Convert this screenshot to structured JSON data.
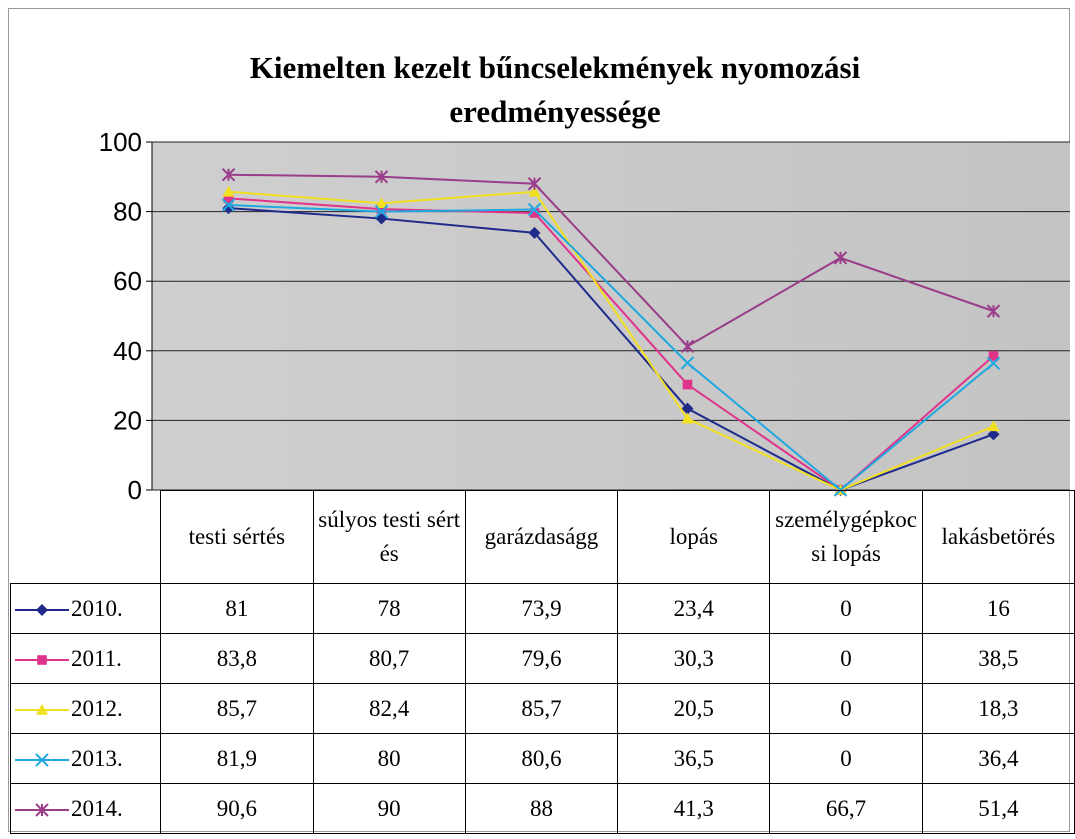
{
  "chart_data": {
    "type": "line",
    "title": "Kiemelten kezelt bűncselekmények nyomozási eredményessége",
    "categories": [
      "testi sértés",
      "súlyos testi sértés",
      "garázdaságg",
      "lopás",
      "személygépkocsi lopás",
      "lakásbetörés"
    ],
    "ylim": [
      0,
      100
    ],
    "yticks": [
      0,
      20,
      40,
      60,
      80,
      100
    ],
    "grid": true,
    "series": [
      {
        "name": "2010.",
        "color": "#1f2a8a",
        "marker": "diamond",
        "values": [
          81,
          78,
          73.9,
          23.4,
          0,
          16
        ],
        "value_labels": [
          "81",
          "78",
          "73,9",
          "23,4",
          "0",
          "16"
        ]
      },
      {
        "name": "2011.",
        "color": "#e0338a",
        "marker": "square",
        "values": [
          83.8,
          80.7,
          79.6,
          30.3,
          0,
          38.5
        ],
        "value_labels": [
          "83,8",
          "80,7",
          "79,6",
          "30,3",
          "0",
          "38,5"
        ]
      },
      {
        "name": "2012.",
        "color": "#f0e020",
        "marker": "triangle",
        "values": [
          85.7,
          82.4,
          85.7,
          20.5,
          0,
          18.3
        ],
        "value_labels": [
          "85,7",
          "82,4",
          "85,7",
          "20,5",
          "0",
          "18,3"
        ]
      },
      {
        "name": "2013.",
        "color": "#20a8e0",
        "marker": "x",
        "values": [
          81.9,
          80,
          80.6,
          36.5,
          0,
          36.4
        ],
        "value_labels": [
          "81,9",
          "80",
          "80,6",
          "36,5",
          "0",
          "36,4"
        ]
      },
      {
        "name": "2014.",
        "color": "#9a3d8a",
        "marker": "star",
        "values": [
          90.6,
          90,
          88,
          41.3,
          66.7,
          51.4
        ],
        "value_labels": [
          "90,6",
          "90",
          "88",
          "41,3",
          "66,7",
          "51,4"
        ]
      }
    ]
  }
}
